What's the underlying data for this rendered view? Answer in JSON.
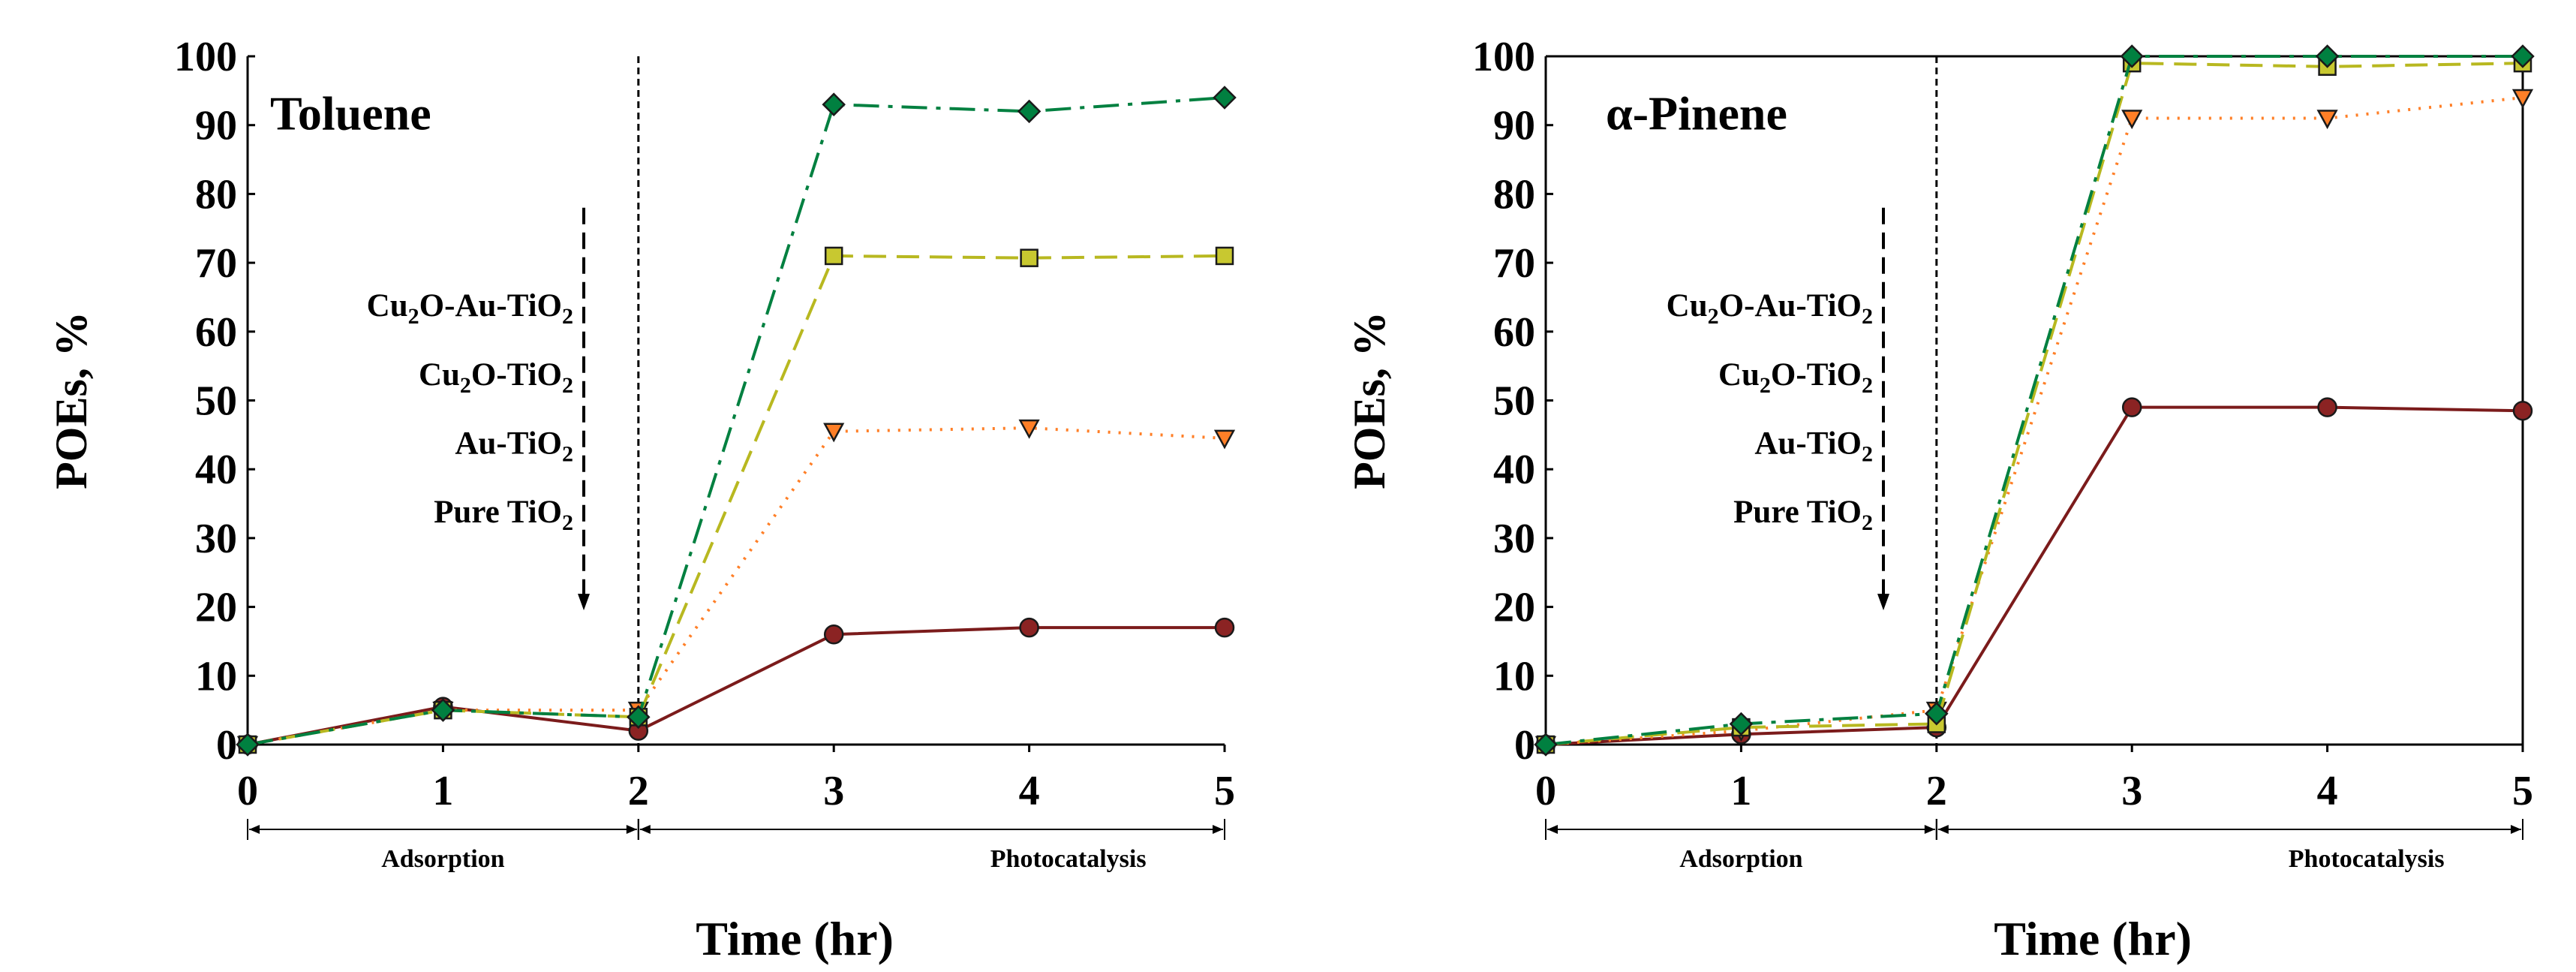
{
  "chart_data": [
    {
      "type": "line",
      "title": "Toluene",
      "xlabel": "Time (hr)",
      "ylabel": "POEs, %",
      "x": [
        0,
        1,
        2,
        3,
        4,
        5
      ],
      "xlim": [
        0,
        5
      ],
      "ylim": [
        0,
        100
      ],
      "xticks": [
        0,
        1,
        2,
        3,
        4,
        5
      ],
      "yticks": [
        0,
        10,
        20,
        30,
        40,
        50,
        60,
        70,
        80,
        90,
        100
      ],
      "grid": false,
      "divider_x": 2,
      "phases": [
        {
          "label": "Adsorption",
          "from": 0,
          "to": 2
        },
        {
          "label": "Photocatalysis",
          "from": 2,
          "to": 5
        }
      ],
      "series": [
        {
          "name": "Pure TiO2",
          "label_main": "Pure TiO",
          "label_sub": "2",
          "label_tail": "",
          "marker": "circle",
          "dash": "solid",
          "color": "#7b1b1b",
          "marker_fill": "#8b2323",
          "values": [
            0,
            5.5,
            2,
            16,
            17,
            17
          ]
        },
        {
          "name": "Au-TiO2",
          "label_main": "Au-TiO",
          "label_sub": "2",
          "label_tail": "",
          "marker": "triangle-down",
          "dash": "dotted",
          "color": "#ff7f27",
          "marker_fill": "#ff7f27",
          "values": [
            0,
            5,
            5,
            45.5,
            46,
            44.5
          ]
        },
        {
          "name": "Cu2O-TiO2",
          "label_main": "Cu",
          "label_sub": "2",
          "label_tail": "O-TiO",
          "label_sub2": "2",
          "marker": "square",
          "dash": "dashed",
          "color": "#b8b820",
          "marker_fill": "#c8c830",
          "values": [
            0,
            5,
            4,
            71,
            70.7,
            71
          ]
        },
        {
          "name": "Cu2O-Au-TiO2",
          "label_main": "Cu",
          "label_sub": "2",
          "label_tail": "O-Au-TiO",
          "label_sub2": "2",
          "marker": "diamond",
          "dash": "dashdot",
          "color": "#008040",
          "marker_fill": "#008040",
          "values": [
            0,
            5,
            4,
            93,
            92,
            94
          ]
        }
      ]
    },
    {
      "type": "line",
      "title": "α-Pinene",
      "xlabel": "Time (hr)",
      "ylabel": "POEs, %",
      "x": [
        0,
        1,
        2,
        3,
        4,
        5
      ],
      "xlim": [
        0,
        5
      ],
      "ylim": [
        0,
        100
      ],
      "xticks": [
        0,
        1,
        2,
        3,
        4,
        5
      ],
      "yticks": [
        0,
        10,
        20,
        30,
        40,
        50,
        60,
        70,
        80,
        90,
        100
      ],
      "grid": false,
      "divider_x": 2,
      "phases": [
        {
          "label": "Adsorption",
          "from": 0,
          "to": 2
        },
        {
          "label": "Photocatalysis",
          "from": 2,
          "to": 5
        }
      ],
      "series": [
        {
          "name": "Pure TiO2",
          "label_main": "Pure TiO",
          "label_sub": "2",
          "label_tail": "",
          "marker": "circle",
          "dash": "solid",
          "color": "#7b1b1b",
          "marker_fill": "#8b2323",
          "values": [
            0,
            1.5,
            2.5,
            49,
            49,
            48.5
          ]
        },
        {
          "name": "Au-TiO2",
          "label_main": "Au-TiO",
          "label_sub": "2",
          "label_tail": "",
          "marker": "triangle-down",
          "dash": "dotted",
          "color": "#ff7f27",
          "marker_fill": "#ff7f27",
          "values": [
            0,
            2,
            5,
            91,
            91,
            94
          ]
        },
        {
          "name": "Cu2O-TiO2",
          "label_main": "Cu",
          "label_sub": "2",
          "label_tail": "O-TiO",
          "label_sub2": "2",
          "marker": "square",
          "dash": "dashed",
          "color": "#b8b820",
          "marker_fill": "#c8c830",
          "values": [
            0,
            2.5,
            3,
            99,
            98.5,
            99
          ]
        },
        {
          "name": "Cu2O-Au-TiO2",
          "label_main": "Cu",
          "label_sub": "2",
          "label_tail": "O-Au-TiO",
          "label_sub2": "2",
          "marker": "diamond",
          "dash": "dashdot",
          "color": "#008040",
          "marker_fill": "#008040",
          "values": [
            0,
            3,
            4.5,
            100,
            100,
            100
          ]
        }
      ]
    }
  ]
}
